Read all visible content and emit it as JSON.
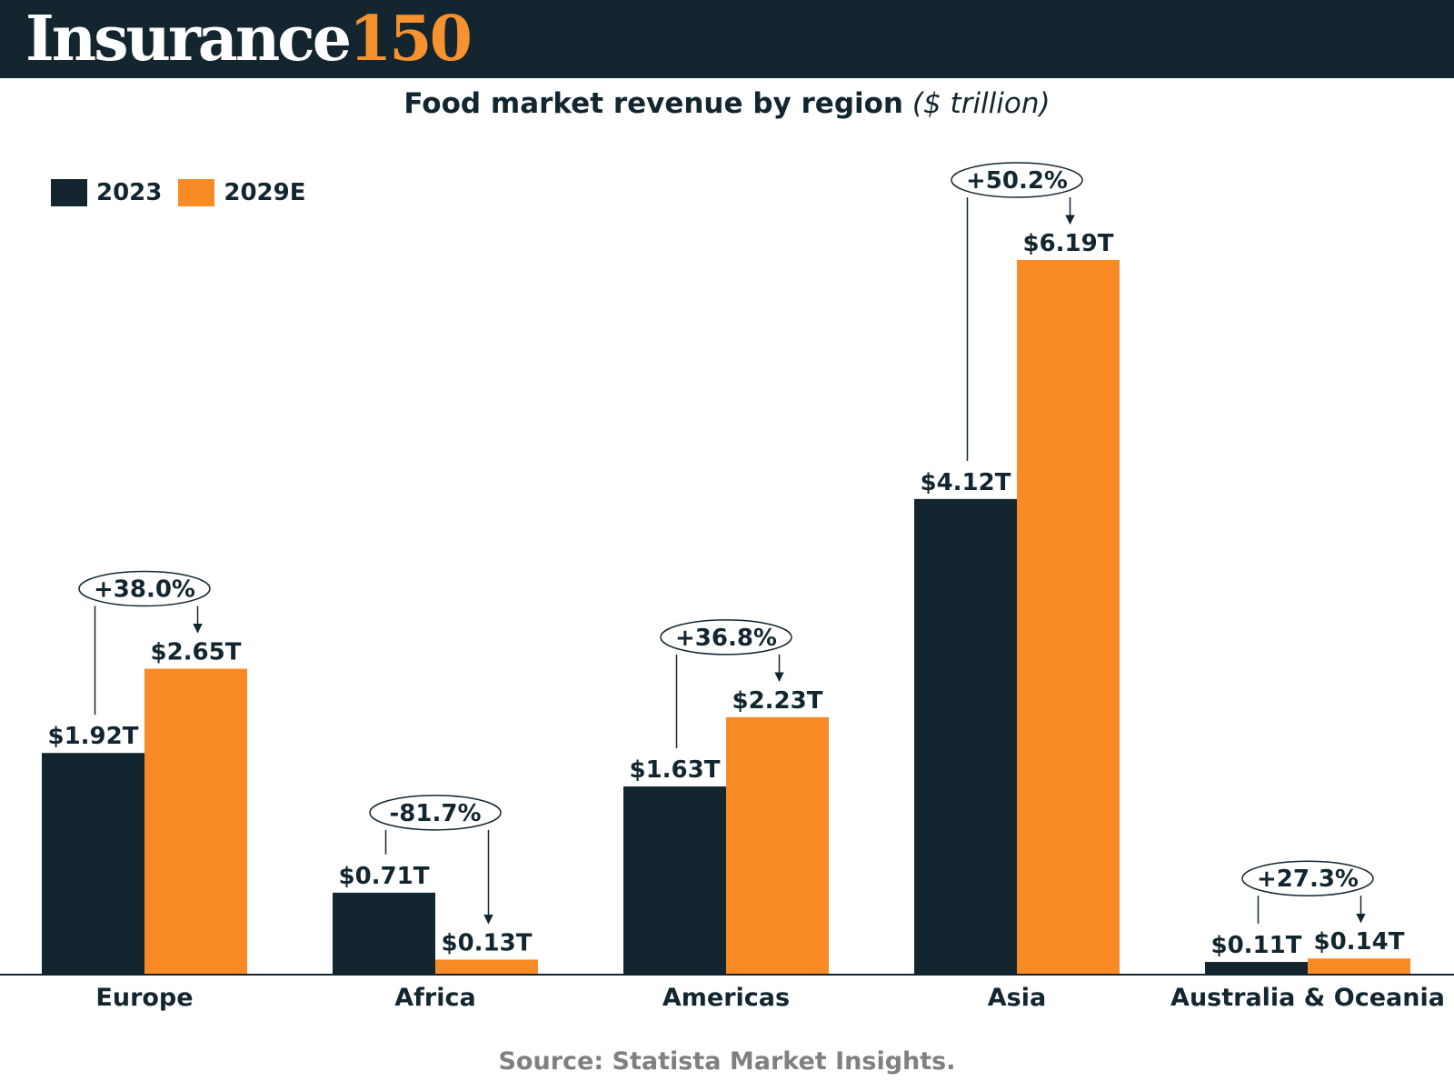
{
  "header": {
    "brand_main": "Insurance",
    "brand_number": "150"
  },
  "chart_data": {
    "type": "bar",
    "title": "Food market revenue by region",
    "unit": "($ trillion)",
    "categories": [
      "Europe",
      "Africa",
      "Americas",
      "Asia",
      "Australia & Oceania"
    ],
    "series": [
      {
        "name": "2023",
        "color": "#13262f",
        "values": [
          1.92,
          0.71,
          1.63,
          4.12,
          0.11
        ],
        "labels": [
          "$1.92T",
          "$0.71T",
          "$1.63T",
          "$4.12T",
          "$0.11T"
        ]
      },
      {
        "name": "2029E",
        "color": "#f98b27",
        "values": [
          2.65,
          0.13,
          2.23,
          6.19,
          0.14
        ],
        "labels": [
          "$2.65T",
          "$0.13T",
          "$2.23T",
          "$6.19T",
          "$0.14T"
        ]
      }
    ],
    "changes": [
      "+38.0%",
      "-81.7%",
      "+36.8%",
      "+50.2%",
      "+27.3%"
    ],
    "ylim": [
      0,
      6.19
    ],
    "grid": false,
    "legend_position": "top-left"
  },
  "source": "Source: Statista Market Insights."
}
